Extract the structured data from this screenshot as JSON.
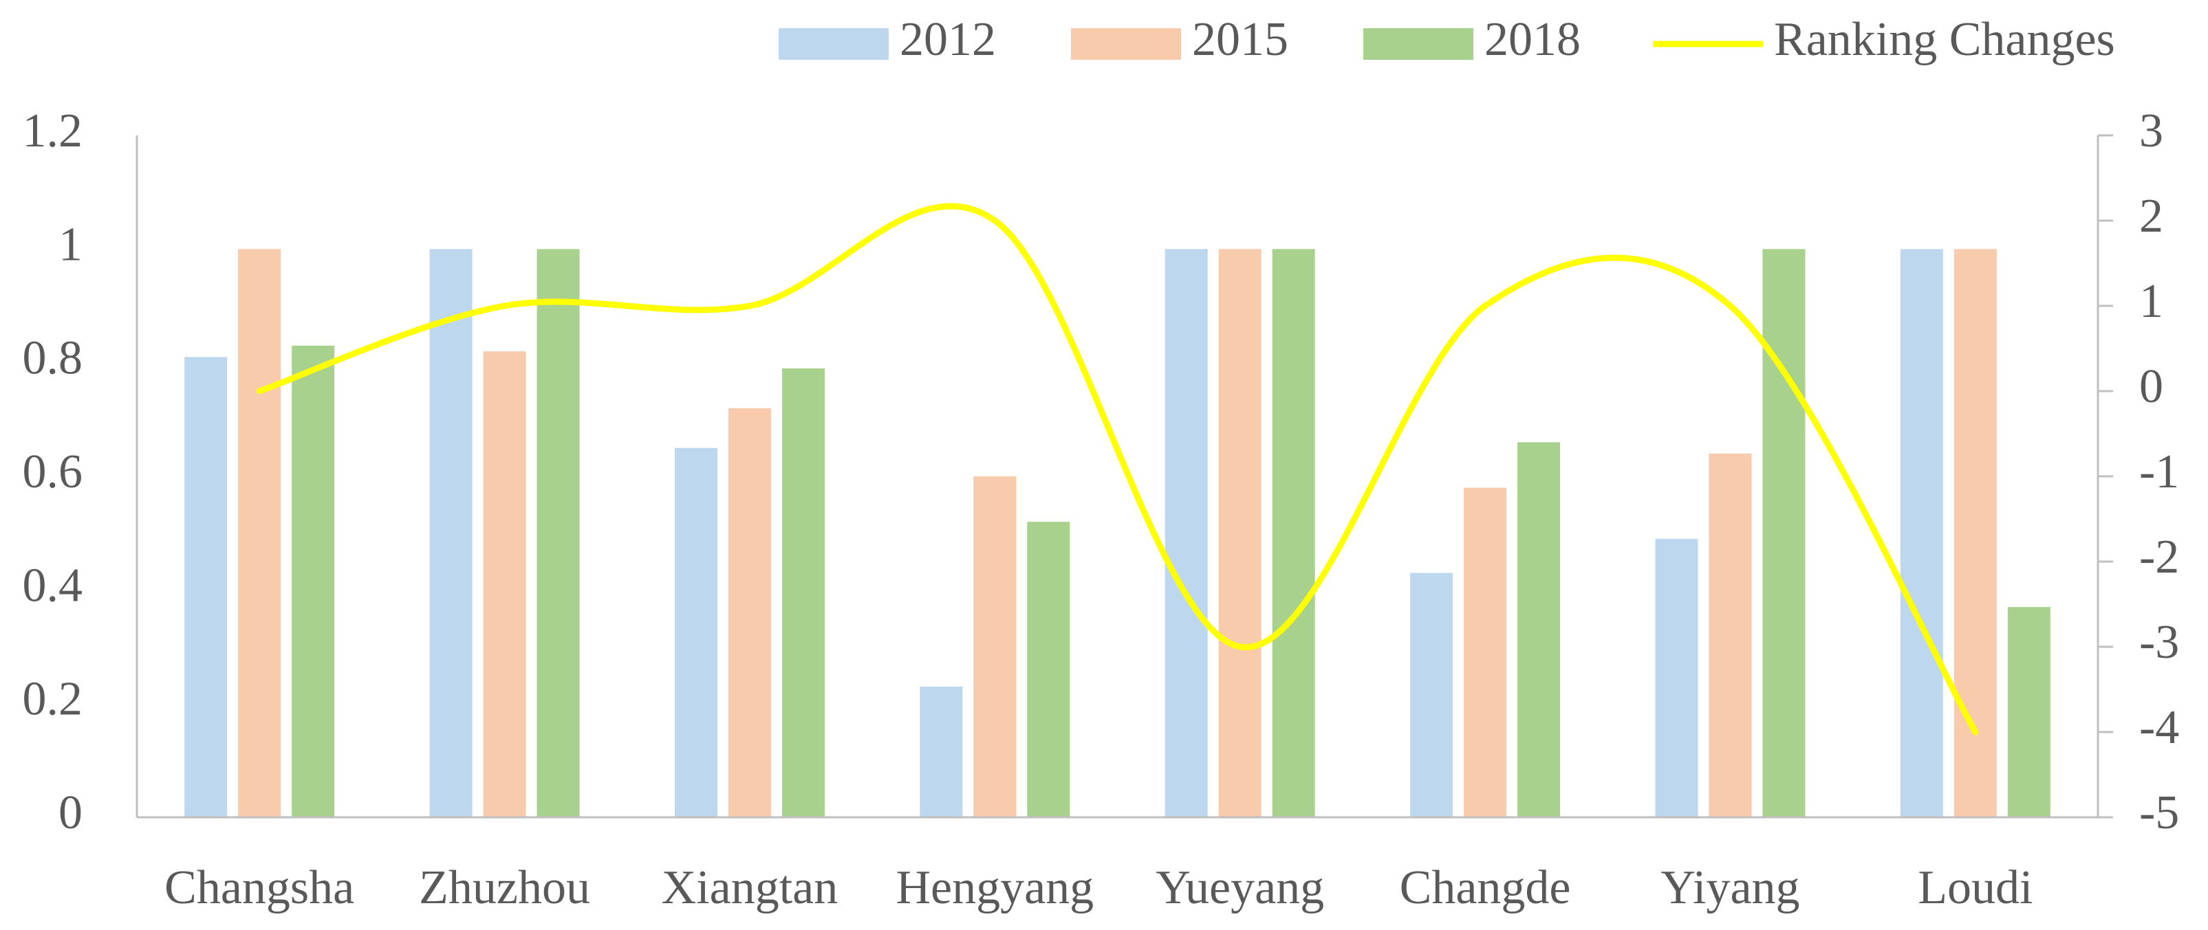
{
  "chart_data": {
    "type": "bar",
    "categories": [
      "Changsha",
      "Zhuzhou",
      "Xiangtan",
      "Hengyang",
      "Yueyang",
      "Changde",
      "Yiyang",
      "Loudi"
    ],
    "series": [
      {
        "name": "2012",
        "color": "#bdd7ee",
        "values": [
          0.81,
          1,
          0.65,
          0.23,
          1,
          0.43,
          0.49,
          1
        ]
      },
      {
        "name": "2015",
        "color": "#f8cbad",
        "values": [
          1,
          0.82,
          0.72,
          0.6,
          1,
          0.58,
          0.64,
          1
        ]
      },
      {
        "name": "2018",
        "color": "#a9d18e",
        "values": [
          0.83,
          1,
          0.79,
          0.52,
          1,
          0.66,
          1,
          0.37
        ]
      },
      {
        "name": "Ranking Changes",
        "type": "line",
        "axis": "y2",
        "smooth": true,
        "color": "#ffff00",
        "values": [
          0,
          1,
          1,
          2,
          -3,
          1,
          1,
          -4
        ]
      }
    ],
    "ylim": [
      0,
      1.2
    ],
    "yticks": [
      0,
      0.2,
      0.4,
      0.6,
      0.8,
      1,
      1.2
    ],
    "y2lim": [
      -5,
      3
    ],
    "y2ticks": [
      -5,
      -4,
      -3,
      -2,
      -1,
      0,
      1,
      2,
      3
    ],
    "grid": false,
    "legend": "top-right"
  }
}
